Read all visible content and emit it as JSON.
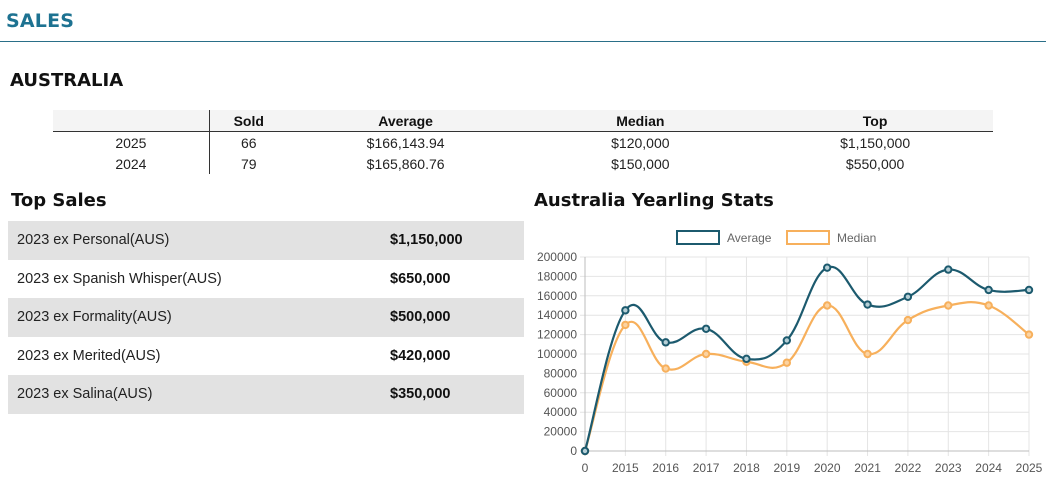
{
  "header": {
    "title": "SALES"
  },
  "region": {
    "title": "AUSTRALIA"
  },
  "summary": {
    "columns": [
      "",
      "Sold",
      "Average",
      "Median",
      "Top"
    ],
    "rows": [
      {
        "year": "2025",
        "sold": "66",
        "average": "$166,143.94",
        "median": "$120,000",
        "top": "$1,150,000"
      },
      {
        "year": "2024",
        "sold": "79",
        "average": "$165,860.76",
        "median": "$150,000",
        "top": "$550,000"
      }
    ]
  },
  "top_sales": {
    "title": "Top Sales",
    "items": [
      {
        "name": "2023 ex Personal(AUS)",
        "price": "$1,150,000"
      },
      {
        "name": "2023 ex Spanish Whisper(AUS)",
        "price": "$650,000"
      },
      {
        "name": "2023 ex Formality(AUS)",
        "price": "$500,000"
      },
      {
        "name": "2023 ex Merited(AUS)",
        "price": "$420,000"
      },
      {
        "name": "2023 ex Salina(AUS)",
        "price": "$350,000"
      }
    ]
  },
  "chart_section": {
    "title": "Australia Yearling Stats"
  },
  "chart_data": {
    "type": "line",
    "title": "Australia Yearling Stats",
    "categories": [
      "0",
      "2015",
      "2016",
      "2017",
      "2018",
      "2019",
      "2020",
      "2021",
      "2022",
      "2023",
      "2024",
      "2025"
    ],
    "series": [
      {
        "name": "Average",
        "color": "#1c5a6e",
        "values": [
          0,
          145000,
          112000,
          126000,
          95000,
          114000,
          189000,
          151000,
          159000,
          187000,
          166000,
          166000
        ]
      },
      {
        "name": "Median",
        "color": "#f7b05c",
        "values": [
          0,
          130000,
          85000,
          100000,
          92000,
          91000,
          150000,
          100000,
          135000,
          150000,
          150000,
          120000
        ]
      }
    ],
    "ylim": [
      0,
      200000
    ],
    "yticks": [
      0,
      20000,
      40000,
      60000,
      80000,
      100000,
      120000,
      140000,
      160000,
      180000,
      200000
    ],
    "grid": true,
    "legend_position": "top"
  }
}
